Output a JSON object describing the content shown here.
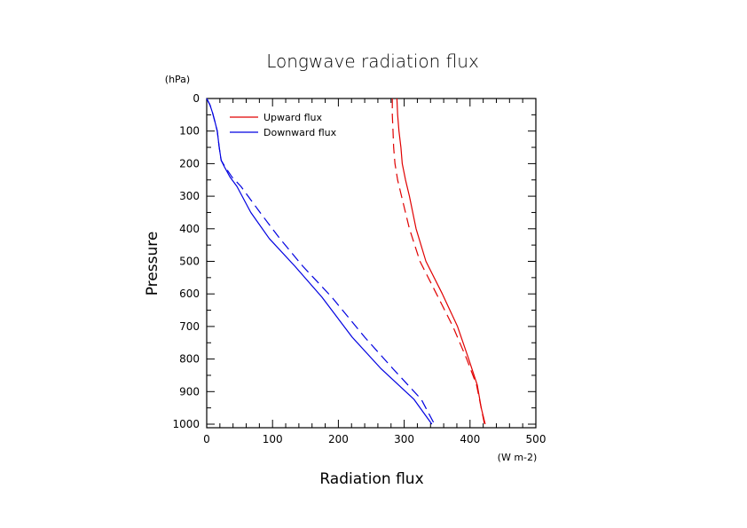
{
  "chart_data": {
    "type": "line",
    "title": "Longwave radiation flux",
    "xlabel": "Radiation flux",
    "ylabel": "Pressure",
    "x_unit": "(W m-2)",
    "y_unit": "(hPa)",
    "xlim": [
      0,
      500
    ],
    "ylim": [
      1010,
      0
    ],
    "y_inverted": true,
    "x_ticks": [
      0,
      100,
      200,
      300,
      400,
      500
    ],
    "x_tick_labels": [
      "0",
      "100",
      "200",
      "300",
      "400",
      "500"
    ],
    "y_ticks": [
      0,
      100,
      200,
      300,
      400,
      500,
      600,
      700,
      800,
      900,
      1000
    ],
    "y_tick_labels": [
      "0",
      "100",
      "200",
      "300",
      "400",
      "500",
      "600",
      "700",
      "800",
      "900",
      "1000"
    ],
    "grid": false,
    "legend_position": "top-left",
    "legend": [
      {
        "label": "Upward flux",
        "color": "#e00000"
      },
      {
        "label": "Downward flux",
        "color": "#0000e0"
      }
    ],
    "series": [
      {
        "name": "Upward flux (solid)",
        "color": "#e00000",
        "style": "solid",
        "points": [
          [
            289,
            0
          ],
          [
            290,
            50
          ],
          [
            292,
            100
          ],
          [
            295,
            150
          ],
          [
            297,
            200
          ],
          [
            302,
            250
          ],
          [
            308,
            300
          ],
          [
            318,
            400
          ],
          [
            333,
            500
          ],
          [
            358,
            600
          ],
          [
            381,
            700
          ],
          [
            398,
            800
          ],
          [
            411,
            880
          ],
          [
            417,
            950
          ],
          [
            423,
            1000
          ]
        ]
      },
      {
        "name": "Upward flux (dashed)",
        "color": "#e00000",
        "style": "dashed",
        "points": [
          [
            282,
            0
          ],
          [
            282,
            50
          ],
          [
            283,
            100
          ],
          [
            284,
            150
          ],
          [
            286,
            200
          ],
          [
            290,
            250
          ],
          [
            296,
            300
          ],
          [
            308,
            400
          ],
          [
            324,
            500
          ],
          [
            349,
            600
          ],
          [
            374,
            700
          ],
          [
            395,
            800
          ],
          [
            410,
            880
          ],
          [
            417,
            950
          ],
          [
            422,
            1000
          ]
        ]
      },
      {
        "name": "Downward flux (solid)",
        "color": "#0000e0",
        "style": "solid",
        "points": [
          [
            0,
            0
          ],
          [
            5,
            20
          ],
          [
            9,
            45
          ],
          [
            13,
            75
          ],
          [
            16,
            100
          ],
          [
            19,
            150
          ],
          [
            22,
            190
          ],
          [
            27,
            210
          ],
          [
            35,
            240
          ],
          [
            46,
            270
          ],
          [
            67,
            350
          ],
          [
            95,
            430
          ],
          [
            134,
            515
          ],
          [
            175,
            610
          ],
          [
            221,
            733
          ],
          [
            265,
            830
          ],
          [
            315,
            924
          ],
          [
            342,
            1000
          ]
        ]
      },
      {
        "name": "Downward flux (dashed)",
        "color": "#0000e0",
        "style": "dashed",
        "points": [
          [
            0,
            0
          ],
          [
            5,
            20
          ],
          [
            9,
            45
          ],
          [
            13,
            75
          ],
          [
            16,
            100
          ],
          [
            19,
            150
          ],
          [
            22,
            190
          ],
          [
            28,
            210
          ],
          [
            38,
            240
          ],
          [
            52,
            270
          ],
          [
            81,
            350
          ],
          [
            111,
            430
          ],
          [
            146,
            515
          ],
          [
            190,
            610
          ],
          [
            240,
            733
          ],
          [
            283,
            830
          ],
          [
            326,
            924
          ],
          [
            346,
            1000
          ]
        ]
      }
    ]
  }
}
